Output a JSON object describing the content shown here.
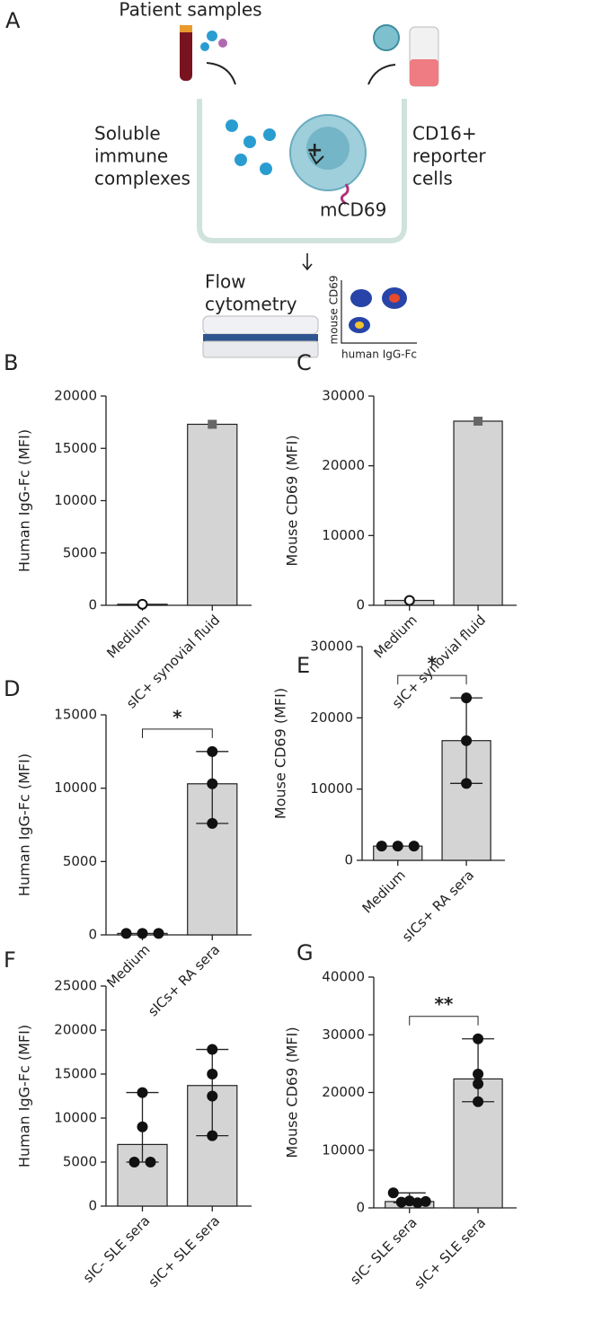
{
  "diagram": {
    "label": "A",
    "samples": "Patient samples",
    "complexes": [
      "Soluble",
      "immune",
      "complexes"
    ],
    "reporter": [
      "CD16+",
      "reporter",
      "cells"
    ],
    "marker": "mCD69",
    "method": [
      "Flow",
      "cytometry"
    ],
    "plot_y": "mouse CD69",
    "plot_x": "human IgG-Fc"
  },
  "chart_data": [
    {
      "type": "bar",
      "panel": "B",
      "ylabel": "Human IgG-Fc (MFI)",
      "categories": [
        "Medium",
        "sIC+ synovial fluid"
      ],
      "values": [
        100,
        17300
      ],
      "points": [
        [
          100
        ],
        [
          17300
        ]
      ],
      "markers": [
        "open-circle",
        "square"
      ],
      "ylim": [
        0,
        20000
      ],
      "yticks": [
        0,
        5000,
        10000,
        15000,
        20000
      ],
      "color": "#d4d4d4"
    },
    {
      "type": "bar",
      "panel": "C",
      "ylabel": "Mouse CD69 (MFI)",
      "categories": [
        "Medium",
        "sIC+ synovial fluid"
      ],
      "values": [
        700,
        26400
      ],
      "points": [
        [
          700
        ],
        [
          26400
        ]
      ],
      "markers": [
        "open-circle",
        "square"
      ],
      "ylim": [
        0,
        30000
      ],
      "yticks": [
        0,
        10000,
        20000,
        30000
      ],
      "color": "#d4d4d4"
    },
    {
      "type": "bar",
      "panel": "D",
      "ylabel": "Human IgG-Fc (MFI)",
      "categories": [
        "Medium",
        "sICs+ RA sera"
      ],
      "values": [
        100,
        10300
      ],
      "points": [
        [
          100,
          100,
          100
        ],
        [
          12500,
          10300,
          7600
        ]
      ],
      "whiskers": [
        null,
        [
          7600,
          12500
        ]
      ],
      "ylim": [
        0,
        15000
      ],
      "yticks": [
        0,
        5000,
        10000,
        15000
      ],
      "color": "#d4d4d4",
      "significance": "*"
    },
    {
      "type": "bar",
      "panel": "E",
      "ylabel": "Mouse CD69 (MFI)",
      "categories": [
        "Medium",
        "sICs+ RA sera"
      ],
      "values": [
        2000,
        16800
      ],
      "points": [
        [
          2000,
          2000,
          2000
        ],
        [
          22800,
          16800,
          10800
        ]
      ],
      "whiskers": [
        null,
        [
          10800,
          22800
        ]
      ],
      "ylim": [
        0,
        30000
      ],
      "yticks": [
        0,
        10000,
        20000,
        30000
      ],
      "color": "#d4d4d4",
      "significance": "*"
    },
    {
      "type": "bar",
      "panel": "F",
      "ylabel": "Human IgG-Fc (MFI)",
      "categories": [
        "sIC- SLE sera",
        "sIC+ SLE sera"
      ],
      "values": [
        7000,
        13700
      ],
      "points": [
        [
          12900,
          9000,
          5000,
          5000
        ],
        [
          17800,
          15000,
          12500,
          8000
        ]
      ],
      "whiskers": [
        [
          5000,
          12900
        ],
        [
          8000,
          17800
        ]
      ],
      "ylim": [
        0,
        25000
      ],
      "yticks": [
        0,
        5000,
        10000,
        15000,
        20000,
        25000
      ],
      "color": "#d4d4d4"
    },
    {
      "type": "bar",
      "panel": "G",
      "ylabel": "Mouse CD69 (MFI)",
      "categories": [
        "sIC- SLE sera",
        "sIC+ SLE sera"
      ],
      "values": [
        1100,
        22350
      ],
      "points": [
        [
          2600,
          1200,
          1100,
          1000,
          900
        ],
        [
          29300,
          23200,
          21500,
          18400
        ]
      ],
      "whiskers": [
        [
          900,
          2600
        ],
        [
          18400,
          29300
        ]
      ],
      "ylim": [
        0,
        40000
      ],
      "yticks": [
        0,
        10000,
        20000,
        30000,
        40000
      ],
      "color": "#d4d4d4",
      "significance": "**"
    }
  ]
}
